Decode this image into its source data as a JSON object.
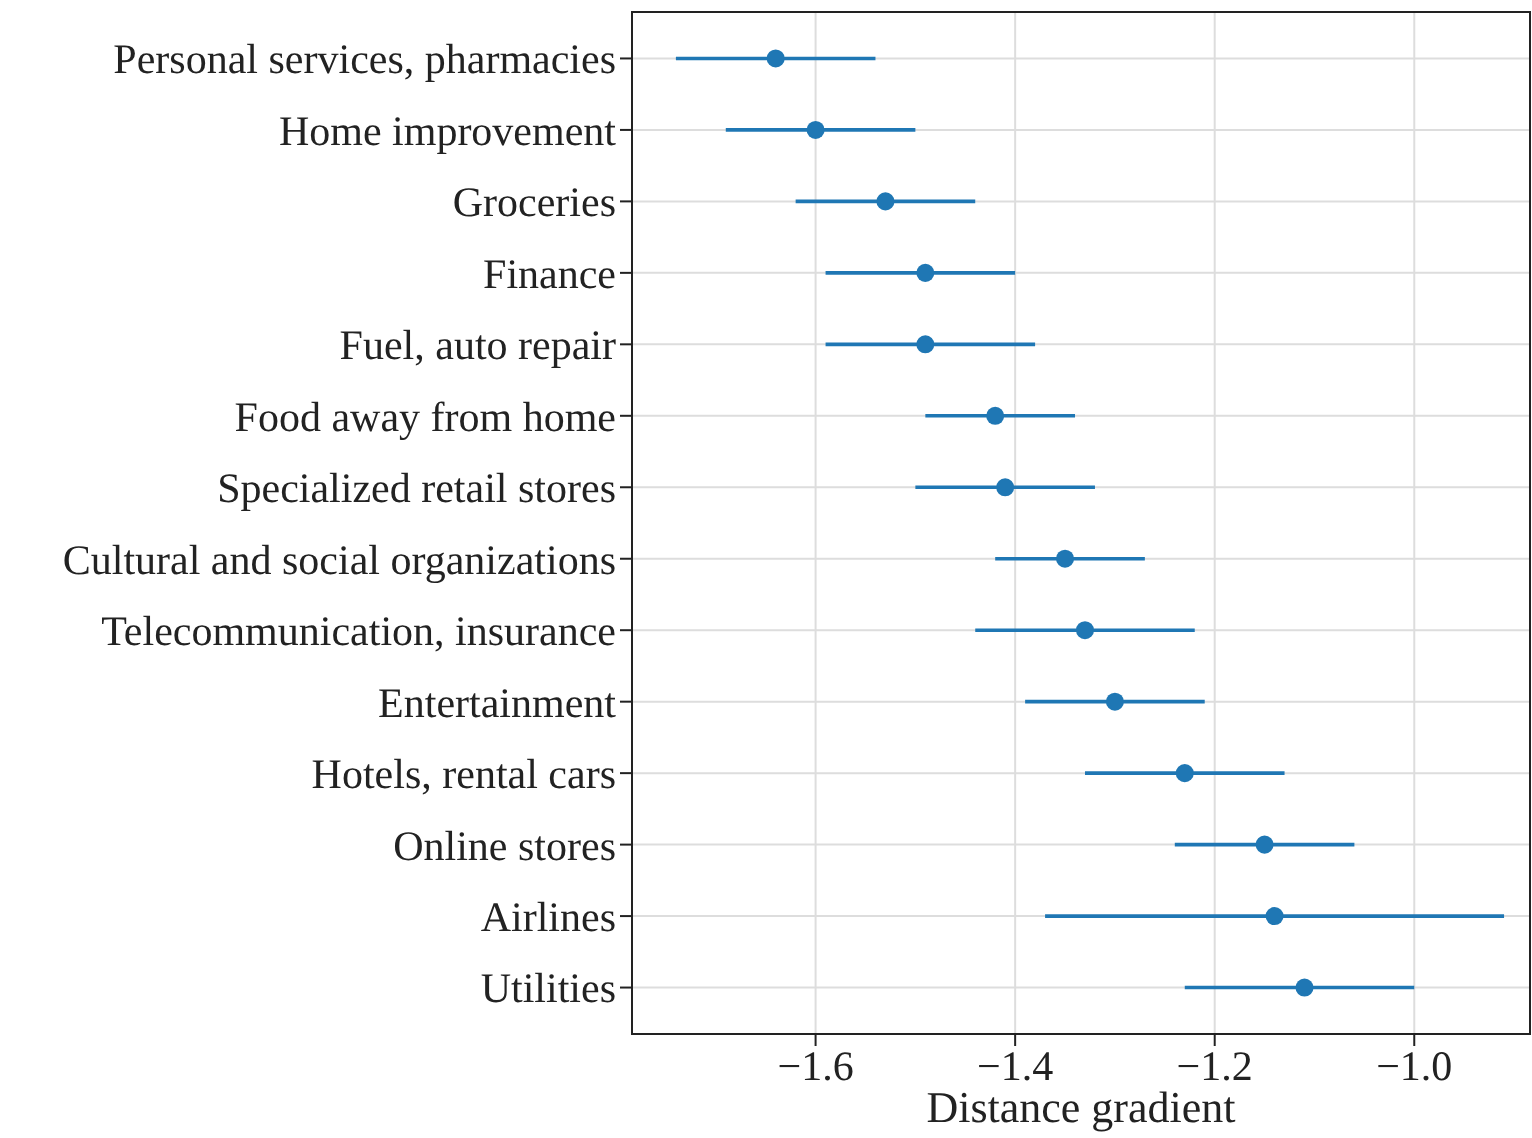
{
  "chart_data": {
    "type": "scatter",
    "xlabel": "Distance gradient",
    "categories": [
      "Personal services, pharmacies",
      "Home improvement",
      "Groceries",
      "Finance",
      "Fuel, auto repair",
      "Food away from home",
      "Specialized retail stores",
      "Cultural and social organizations",
      "Telecommunication, insurance",
      "Entertainment",
      "Hotels, rental cars",
      "Online stores",
      "Airlines",
      "Utilities"
    ],
    "orientation": "horizontal",
    "values": [
      -1.64,
      -1.6,
      -1.53,
      -1.49,
      -1.49,
      -1.42,
      -1.41,
      -1.35,
      -1.33,
      -1.3,
      -1.23,
      -1.15,
      -1.14,
      -1.11
    ],
    "errors": [
      [
        -1.74,
        -1.54
      ],
      [
        -1.69,
        -1.5
      ],
      [
        -1.62,
        -1.44
      ],
      [
        -1.59,
        -1.4
      ],
      [
        -1.59,
        -1.38
      ],
      [
        -1.49,
        -1.34
      ],
      [
        -1.5,
        -1.32
      ],
      [
        -1.42,
        -1.27
      ],
      [
        -1.44,
        -1.22
      ],
      [
        -1.39,
        -1.21
      ],
      [
        -1.33,
        -1.13
      ],
      [
        -1.24,
        -1.06
      ],
      [
        -1.37,
        -0.91
      ],
      [
        -1.23,
        -1.0
      ]
    ],
    "color": "#1f77b4",
    "marker": "circle",
    "xlim": [
      -1.784,
      -0.884
    ],
    "xticks": [
      {
        "value": -1.6,
        "label": "−1.6"
      },
      {
        "value": -1.4,
        "label": "−1.4"
      },
      {
        "value": -1.2,
        "label": "−1.2"
      },
      {
        "value": -1.0,
        "label": "−1.0"
      }
    ],
    "grid": true,
    "legend": false
  }
}
